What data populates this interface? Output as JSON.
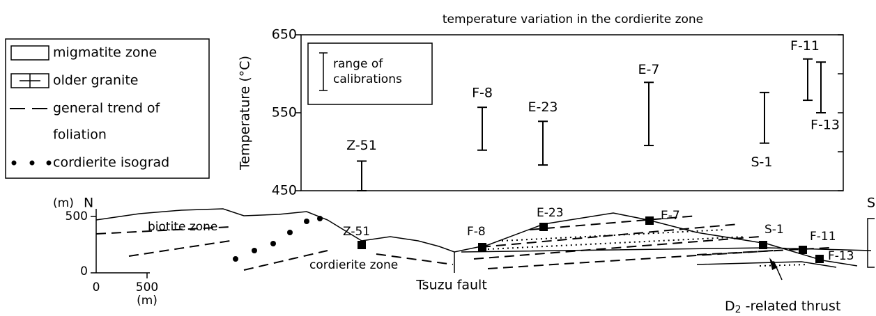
{
  "chart_data": {
    "type": "range",
    "title": "temperature variation in the cordierite zone",
    "y_label": "Temperature (°C)",
    "categories": [
      "Z-51",
      "F-8",
      "E-23",
      "E-7",
      "S-1",
      "F-11",
      "F-13"
    ],
    "low": [
      450,
      502,
      483,
      508,
      511,
      566,
      550
    ],
    "high": [
      488,
      557,
      539,
      589,
      576,
      619,
      615
    ],
    "ylim": [
      450,
      650
    ],
    "yticks": [
      450,
      550,
      650
    ],
    "minor_yticks": [
      500,
      600
    ],
    "color": "#000000",
    "legend": [
      "range of",
      "calibrations"
    ]
  },
  "legend": {
    "items": [
      "migmatite zone",
      "older granite",
      "general trend of",
      "foliation",
      "cordierite isograd"
    ]
  },
  "cross_section": {
    "unit": "(m)",
    "north": "N",
    "south": "S",
    "depth_ticks": [
      "500",
      "0"
    ],
    "scale_ticks": [
      "0",
      "500"
    ],
    "scale_unit": "(m)",
    "zones": [
      "biotite zone",
      "cordierite zone"
    ],
    "fault": "Tsuzu fault",
    "thrust": [
      "D",
      "2",
      " -related thrust"
    ]
  }
}
